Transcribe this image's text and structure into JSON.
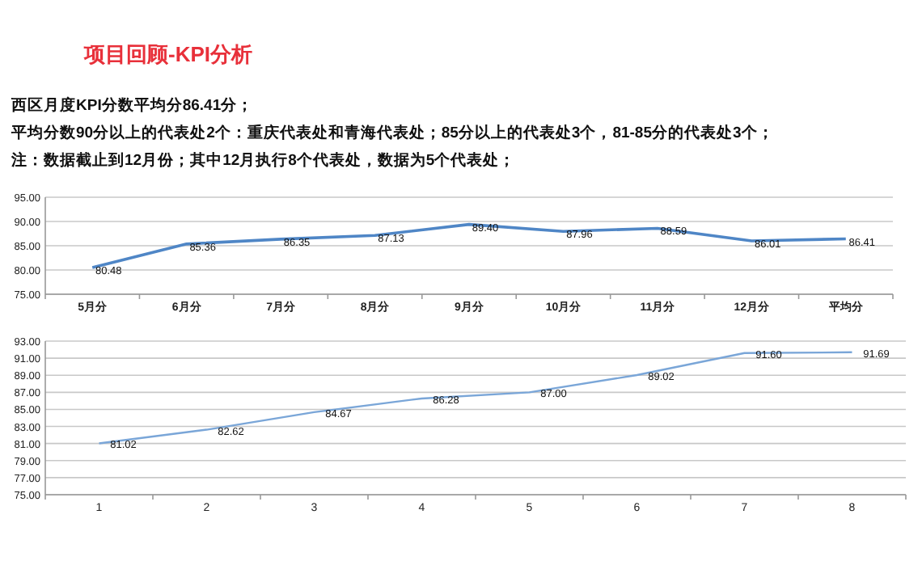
{
  "chart_data": [
    {
      "type": "line",
      "title": "项目回顾-KPI分析",
      "annotations": [
        "西区月度KPI分数平均分86.41分；",
        "平均分数90分以上的代表处2个：重庆代表处和青海代表处；85分以上的代表处3个，81-85分的代表处3个；",
        "注：数据截止到12月份；其中12月执行8个代表处，数据为5个代表处；"
      ],
      "categories": [
        "5月分",
        "6月分",
        "7月分",
        "8月分",
        "9月分",
        "10月分",
        "11月分",
        "12月分",
        "平均分"
      ],
      "series": [
        {
          "color": "#4f86c6",
          "values": [
            80.48,
            85.36,
            86.35,
            87.13,
            89.4,
            87.96,
            88.59,
            86.01,
            86.41
          ],
          "value_labels": [
            "80.48",
            "85.36",
            "86.35",
            "87.13",
            "89.40",
            "87.96",
            "88.59",
            "86.01",
            "86.41"
          ]
        }
      ],
      "ylim": [
        75,
        95
      ],
      "yticks": [
        {
          "value": 75,
          "label": "75.00"
        },
        {
          "value": 80,
          "label": "80.00"
        },
        {
          "value": 85,
          "label": "85.00"
        },
        {
          "value": 90,
          "label": "90.00"
        },
        {
          "value": 95,
          "label": "95.00"
        }
      ],
      "grid": "y"
    },
    {
      "type": "line",
      "categories": [
        "1",
        "2",
        "3",
        "4",
        "5",
        "6",
        "7",
        "8"
      ],
      "series": [
        {
          "color": "#7aa6d8",
          "values": [
            81.02,
            82.62,
            84.67,
            86.28,
            87.0,
            89.02,
            91.6,
            91.69
          ],
          "value_labels": [
            "81.02",
            "82.62",
            "84.67",
            "86.28",
            "87.00",
            "89.02",
            "91.60",
            "91.69"
          ]
        }
      ],
      "ylim": [
        75,
        93
      ],
      "yticks": [
        {
          "value": 75,
          "label": "75.00"
        },
        {
          "value": 77,
          "label": "77.00"
        },
        {
          "value": 79,
          "label": "79.00"
        },
        {
          "value": 81,
          "label": "81.00"
        },
        {
          "value": 83,
          "label": "83.00"
        },
        {
          "value": 85,
          "label": "85.00"
        },
        {
          "value": 87,
          "label": "87.00"
        },
        {
          "value": 89,
          "label": "89.00"
        },
        {
          "value": 91,
          "label": "91.00"
        },
        {
          "value": 93,
          "label": "93.00"
        }
      ],
      "grid": "y"
    }
  ]
}
